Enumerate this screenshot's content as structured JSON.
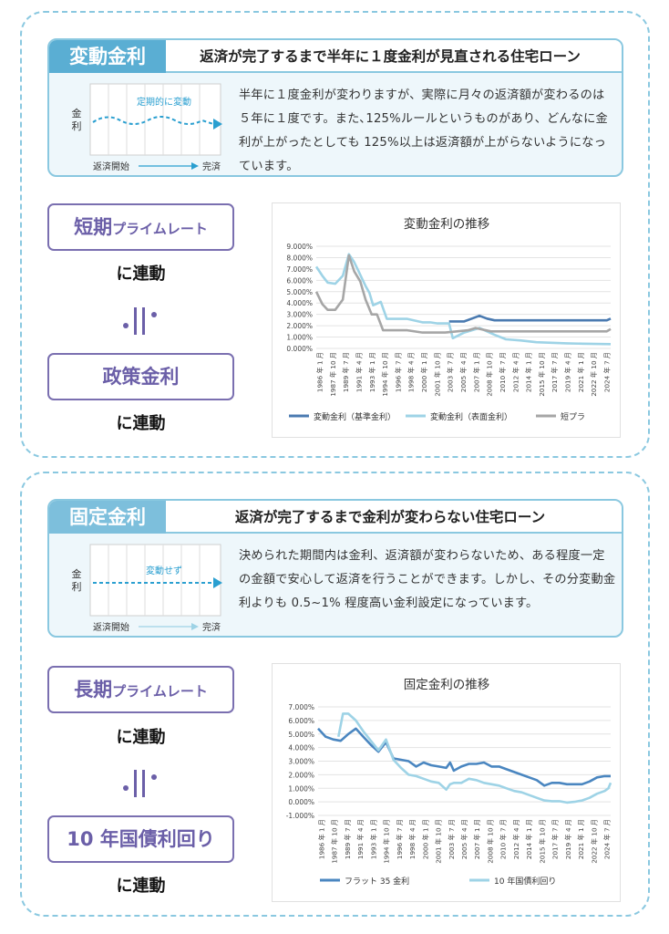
{
  "section1": {
    "tag": "変動金利",
    "headline": "返済が完了するまで半年に１度金利が見直される住宅ローン",
    "description": "半年に１度金利が変わりますが、実際に月々の返済額が変わるのは５年に１度です。また､125%ルールというものがあり、どんなに金利が上がったとしても 125%以上は返済額が上がらないようになっています。",
    "mini": {
      "y_label_1": "金",
      "y_label_2": "利",
      "line_label": "定期的に変動",
      "start": "返済開始",
      "end": "完済"
    },
    "pill_top": {
      "big": "短期",
      "small": "プライムレート"
    },
    "renkan_top": "に連動",
    "pill_bottom": {
      "big": "政策金利",
      "small": ""
    },
    "renkan_bottom": "に連動"
  },
  "section2": {
    "tag": "固定金利",
    "headline": "返済が完了するまで金利が変わらない住宅ローン",
    "description": "決められた期間内は金利、返済額が変わらないため、ある程度一定の金額で安心して返済を行うことができます。しかし、その分変動金利よりも 0.5~1% 程度高い金利設定になっています。",
    "mini": {
      "y_label_1": "金",
      "y_label_2": "利",
      "line_label": "変動せず",
      "start": "返済開始",
      "end": "完済"
    },
    "pill_top": {
      "big": "長期",
      "small": "プライムレート"
    },
    "renkan_top": "に連動",
    "pill_bottom": {
      "big": "10 年国債利回り",
      "small": ""
    },
    "renkan_bottom": "に連動"
  },
  "chart_data": [
    {
      "type": "line",
      "title": "変動金利の推移",
      "xlabel": "",
      "ylabel": "",
      "ylim": [
        0,
        9
      ],
      "ytick_labels": [
        "0.000%",
        "1.000%",
        "2.000%",
        "3.000%",
        "4.000%",
        "5.000%",
        "6.000%",
        "7.000%",
        "8.000%",
        "9.000%"
      ],
      "x_tick_labels": [
        "1986 年 1 月",
        "1987 年 10 月",
        "1989 年 7 月",
        "1991 年 4 月",
        "1993 年 1 月",
        "1994 年 10 月",
        "1996 年 7 月",
        "1998 年 4 月",
        "2000 年 1 月",
        "2001 年 10 月",
        "2003 年 7 月",
        "2005 年 4 月",
        "2007 年 1 月",
        "2008 年 10 月",
        "2010 年 7 月",
        "2012 年 4 月",
        "2014 年 1 月",
        "2015 年 10 月",
        "2017 年 7 月",
        "2019 年 4 月",
        "2021 年 1 月",
        "2022 年 10 月",
        "2024 年 7 月"
      ],
      "grid": true,
      "legend": "bottom",
      "series": [
        {
          "name": "変動金利（基準金利）",
          "color": "#4a7ab0",
          "x": [
            2003.5,
            2005.5,
            2006.5,
            2007.5,
            2008.5,
            2009.5,
            2011,
            2013,
            2015,
            2017,
            2019,
            2021,
            2023,
            2024.3,
            2024.8
          ],
          "values": [
            2.375,
            2.375,
            2.625,
            2.875,
            2.625,
            2.475,
            2.475,
            2.475,
            2.475,
            2.475,
            2.475,
            2.475,
            2.475,
            2.475,
            2.625
          ]
        },
        {
          "name": "変動金利（表面金利）",
          "color": "#9ed3e6",
          "x": [
            1986,
            1986.8,
            1987.5,
            1988.5,
            1989.5,
            1990.3,
            1991,
            1991.5,
            1992,
            1992.5,
            1993,
            1993.5,
            1994.5,
            1995.3,
            1996,
            1998,
            2000,
            2001,
            2002,
            2003.5,
            2004,
            2005.5,
            2006.5,
            2007.5,
            2008.5,
            2009.5,
            2011,
            2013,
            2015,
            2017,
            2019,
            2021,
            2024.8
          ],
          "values": [
            7.2,
            6.4,
            5.8,
            5.7,
            6.4,
            8.3,
            7.6,
            6.9,
            6.2,
            5.5,
            4.9,
            3.8,
            4.1,
            2.6,
            2.6,
            2.6,
            2.3,
            2.3,
            2.2,
            2.2,
            0.9,
            1.4,
            1.6,
            1.8,
            1.5,
            1.2,
            0.8,
            0.7,
            0.55,
            0.5,
            0.45,
            0.42,
            0.38
          ]
        },
        {
          "name": "短プラ",
          "color": "#a6a6a6",
          "x": [
            1986,
            1986.8,
            1987.5,
            1988.5,
            1989.5,
            1990.3,
            1991,
            1991.8,
            1992.5,
            1993.3,
            1994,
            1994.8,
            1996,
            1998,
            2000,
            2003,
            2006,
            2007,
            2009,
            2012,
            2016,
            2020,
            2024.3,
            2024.8
          ],
          "values": [
            5.0,
            3.9,
            3.4,
            3.4,
            4.3,
            8.2,
            6.8,
            5.9,
            4.3,
            3.0,
            3.0,
            1.6,
            1.6,
            1.6,
            1.4,
            1.4,
            1.6,
            1.8,
            1.5,
            1.5,
            1.5,
            1.5,
            1.5,
            1.7
          ]
        }
      ]
    },
    {
      "type": "line",
      "title": "固定金利の推移",
      "xlabel": "",
      "ylabel": "",
      "ylim": [
        -1,
        7
      ],
      "ytick_labels": [
        "-1.000%",
        "0.000%",
        "1.000%",
        "2.000%",
        "3.000%",
        "4.000%",
        "5.000%",
        "6.000%",
        "7.000%"
      ],
      "x_tick_labels": [
        "1986 年 1 月",
        "1987 年 10 月",
        "1989 年 7 月",
        "1991 年 4 月",
        "1993 年 1 月",
        "1994 年 10 月",
        "1996 年 7 月",
        "1998 年 4 月",
        "2000 年 1 月",
        "2001 年 10 月",
        "2003 年 7 月",
        "2005 年 4 月",
        "2007 年 1 月",
        "2008 年 10 月",
        "2010 年 7 月",
        "2012 年 4 月",
        "2014 年 1 月",
        "2015 年 10 月",
        "2017 年 7 月",
        "2019 年 4 月",
        "2021 年 1 月",
        "2022 年 10 月",
        "2024 年 7 月"
      ],
      "grid": true,
      "legend": "bottom",
      "series": [
        {
          "name": "フラット 35 金利",
          "color": "#4a86c0",
          "x": [
            1986,
            1987,
            1988,
            1989,
            1990,
            1991,
            1992,
            1993,
            1994,
            1995,
            1996,
            1997,
            1998,
            1999,
            2000,
            2001,
            2002,
            2003,
            2003.5,
            2004,
            2005,
            2006,
            2007,
            2008,
            2009,
            2010,
            2011,
            2012,
            2013,
            2014,
            2015,
            2016,
            2017,
            2018,
            2019,
            2020,
            2021,
            2022,
            2023,
            2024,
            2024.8
          ],
          "values": [
            5.4,
            4.8,
            4.6,
            4.5,
            5.0,
            5.4,
            4.8,
            4.2,
            3.7,
            4.4,
            3.2,
            3.1,
            3.0,
            2.6,
            2.9,
            2.7,
            2.6,
            2.5,
            2.9,
            2.3,
            2.6,
            2.8,
            2.8,
            2.9,
            2.6,
            2.6,
            2.4,
            2.2,
            2.0,
            1.8,
            1.6,
            1.2,
            1.4,
            1.4,
            1.3,
            1.3,
            1.3,
            1.5,
            1.8,
            1.9,
            1.9
          ]
        },
        {
          "name": "10 年国債利回り",
          "color": "#9ed3e6",
          "x": [
            1988.7,
            1989.3,
            1990,
            1991,
            1992,
            1993,
            1994,
            1995,
            1996,
            1997,
            1998,
            1999,
            2000,
            2001,
            2002,
            2003,
            2003.5,
            2004,
            2005,
            2006,
            2007,
            2008,
            2009,
            2010,
            2011,
            2012,
            2013,
            2014,
            2015,
            2016,
            2017,
            2018,
            2019,
            2020,
            2021,
            2022,
            2023,
            2024,
            2024.5,
            2024.8
          ],
          "values": [
            4.8,
            6.5,
            6.5,
            6.0,
            5.2,
            4.5,
            3.8,
            4.6,
            3.1,
            2.5,
            2.0,
            1.9,
            1.7,
            1.5,
            1.4,
            0.9,
            1.3,
            1.4,
            1.4,
            1.7,
            1.6,
            1.4,
            1.3,
            1.2,
            1.0,
            0.8,
            0.7,
            0.5,
            0.3,
            0.1,
            0.05,
            0.05,
            -0.05,
            0.0,
            0.1,
            0.3,
            0.6,
            0.8,
            1.0,
            1.4
          ]
        }
      ]
    }
  ]
}
